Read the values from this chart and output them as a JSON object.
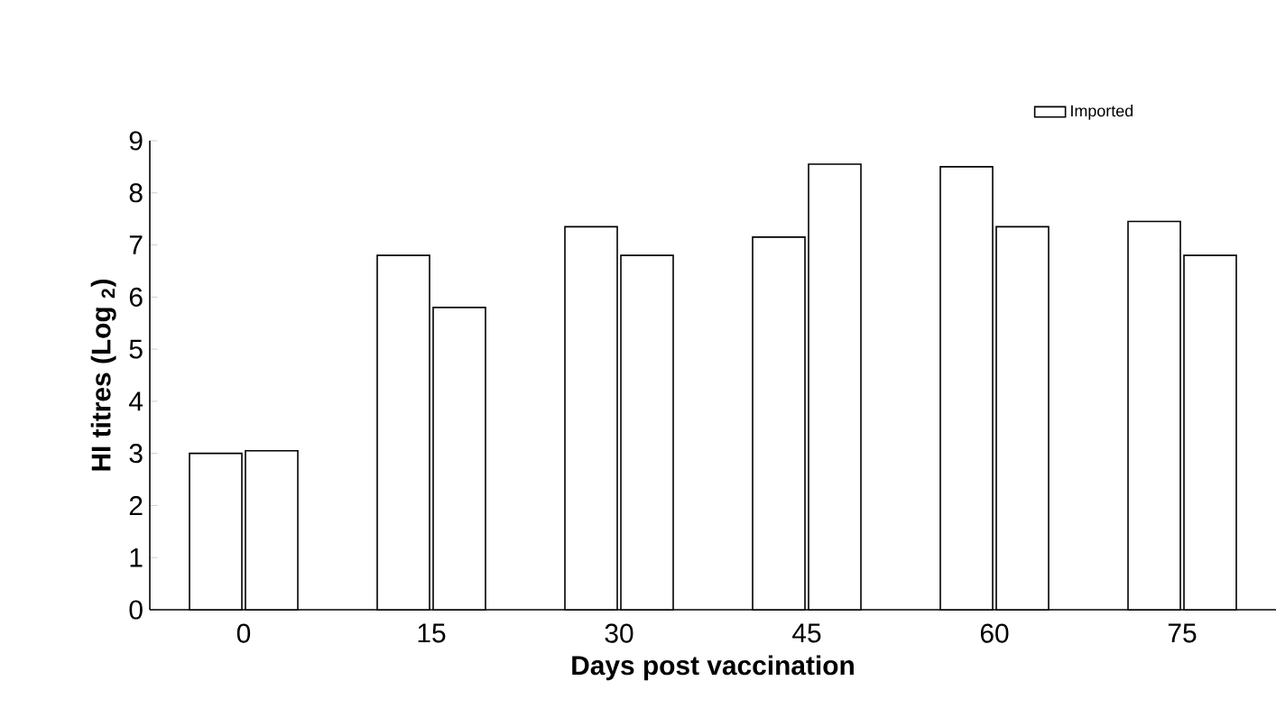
{
  "chart_data": {
    "type": "bar",
    "xlabel": "Days post vaccination",
    "ylabel": "HI titres (Log $_{2}$)",
    "categories": [
      "0",
      "15",
      "30",
      "45",
      "60",
      "75"
    ],
    "series": [
      {
        "color": "#ffffff",
        "values": [
          3.0,
          6.8,
          7.35,
          7.15,
          8.5,
          7.45
        ]
      },
      {
        "name": "Imported",
        "color": "#ffffff",
        "values": [
          3.05,
          5.8,
          6.8,
          8.55,
          7.35,
          6.8
        ]
      }
    ],
    "ylim": [
      0,
      9
    ],
    "yticks": [
      0,
      1,
      2,
      3,
      4,
      5,
      6,
      7,
      8,
      9
    ],
    "legend": "top right"
  }
}
